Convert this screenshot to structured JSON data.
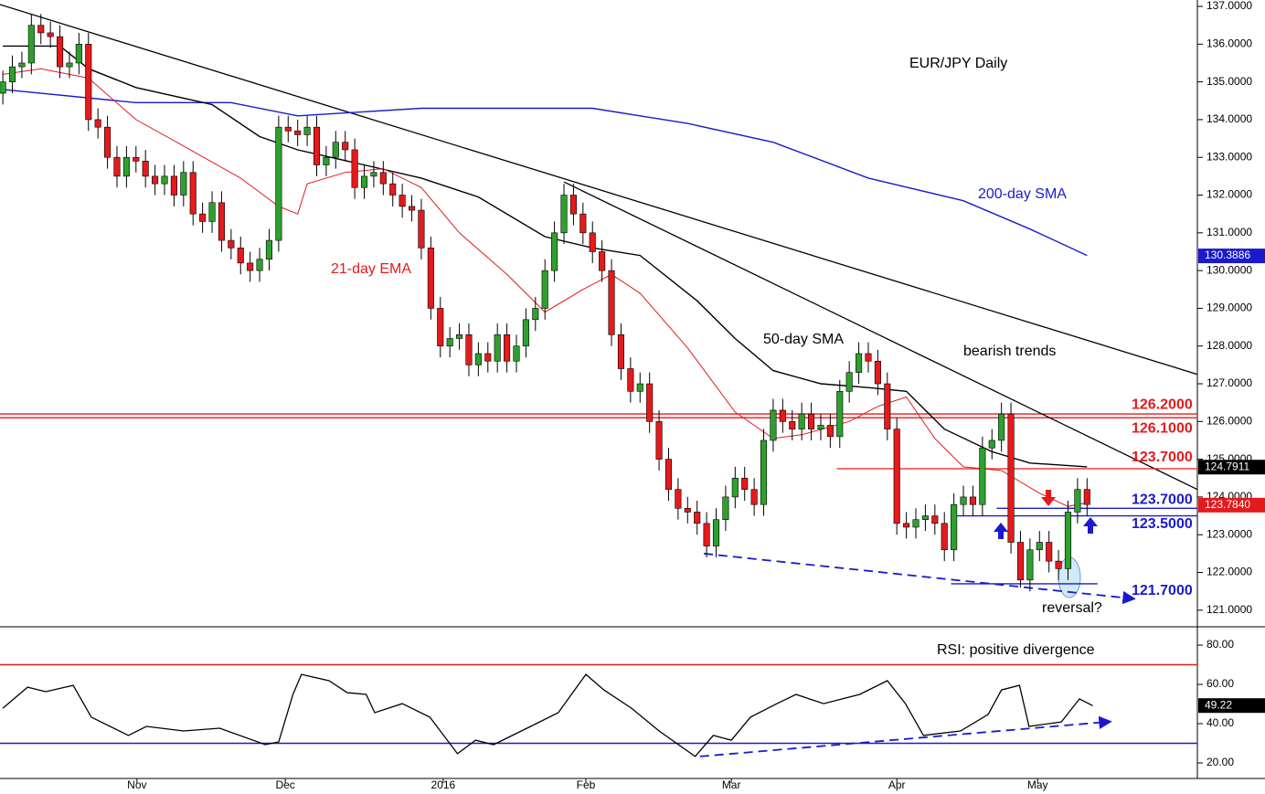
{
  "chart_data": [
    {
      "type": "candlestick",
      "title": "EUR/JPY Daily",
      "xlim": [
        -0.3,
        125.6
      ],
      "xticks": [
        {
          "value": 14.1,
          "label": "Nov"
        },
        {
          "value": 29.7,
          "label": "Dec"
        },
        {
          "value": 46.3,
          "label": "2016"
        },
        {
          "value": 61.3,
          "label": "Feb"
        },
        {
          "value": 76.6,
          "label": "Mar"
        },
        {
          "value": 94,
          "label": "Apr"
        },
        {
          "value": 108.8,
          "label": "May"
        }
      ],
      "ylim": [
        120.56,
        137.17
      ],
      "yticks": [
        {
          "value": 121,
          "label": "121.0000"
        },
        {
          "value": 122,
          "label": "122.0000"
        },
        {
          "value": 123,
          "label": "123.0000"
        },
        {
          "value": 124,
          "label": "124.0000"
        },
        {
          "value": 125,
          "label": "125.0000"
        },
        {
          "value": 126,
          "label": "126.0000"
        },
        {
          "value": 127,
          "label": "127.0000"
        },
        {
          "value": 128,
          "label": "128.0000"
        },
        {
          "value": 129,
          "label": "129.0000"
        },
        {
          "value": 130,
          "label": "130.0000"
        },
        {
          "value": 131,
          "label": "131.0000"
        },
        {
          "value": 132,
          "label": "132.0000"
        },
        {
          "value": 133,
          "label": "133.0000"
        },
        {
          "value": 134,
          "label": "134.0000"
        },
        {
          "value": 135,
          "label": "135.0000"
        },
        {
          "value": 136,
          "label": "136.0000"
        },
        {
          "value": 137,
          "label": "137.0000"
        }
      ],
      "up_color": "#2ea02e",
      "down_color": "#e41a1c",
      "open": [
        134.7,
        135.0,
        135.4,
        135.5,
        136.5,
        136.3,
        136.2,
        135.4,
        135.5,
        136.0,
        134.0,
        133.8,
        133.0,
        132.5,
        133.0,
        132.9,
        132.5,
        132.3,
        132.5,
        132.0,
        132.6,
        131.5,
        131.3,
        131.8,
        130.8,
        130.6,
        130.2,
        130.0,
        130.3,
        130.8,
        133.8,
        133.7,
        133.6,
        133.8,
        132.8,
        133.0,
        133.4,
        133.2,
        132.2,
        132.5,
        132.6,
        132.3,
        132.0,
        131.7,
        131.6,
        130.6,
        129.0,
        128.0,
        128.2,
        128.3,
        127.5,
        127.8,
        127.6,
        128.3,
        127.6,
        128.0,
        128.7,
        129.0,
        130.0,
        131.0,
        132.0,
        131.5,
        131.0,
        130.5,
        130.0,
        128.3,
        127.4,
        126.8,
        127.0,
        126.0,
        125.0,
        124.2,
        123.7,
        123.6,
        123.3,
        122.7,
        123.4,
        124.0,
        124.5,
        124.2,
        123.8,
        125.5,
        126.3,
        126.0,
        125.8,
        126.2,
        125.8,
        125.9,
        125.6,
        126.8,
        127.3,
        127.8,
        127.6,
        127.0,
        125.8,
        123.3,
        123.2,
        123.4,
        123.5,
        123.3,
        122.6,
        123.8,
        124.0,
        123.8,
        125.3,
        125.5,
        126.2,
        122.8,
        121.8,
        122.6,
        122.8,
        122.3,
        122.1,
        123.6,
        124.2
      ],
      "high": [
        135.3,
        135.7,
        135.8,
        136.8,
        136.8,
        136.6,
        136.5,
        135.8,
        136.3,
        136.3,
        134.3,
        134.1,
        133.3,
        133.3,
        133.3,
        133.2,
        132.8,
        132.8,
        132.8,
        132.9,
        132.9,
        131.8,
        132.1,
        132.1,
        131.1,
        130.9,
        130.5,
        130.6,
        131.1,
        134.1,
        134.1,
        134.0,
        134.1,
        134.1,
        133.3,
        133.7,
        133.7,
        133.5,
        132.8,
        132.9,
        132.9,
        132.6,
        132.3,
        132.0,
        131.9,
        130.9,
        129.3,
        128.5,
        128.6,
        128.6,
        128.1,
        128.1,
        128.6,
        128.6,
        128.3,
        129.0,
        129.3,
        130.3,
        131.3,
        132.3,
        132.3,
        131.8,
        131.3,
        130.8,
        130.3,
        128.6,
        127.7,
        127.3,
        127.3,
        126.3,
        125.3,
        124.5,
        124.0,
        123.9,
        123.6,
        123.7,
        124.3,
        124.8,
        124.8,
        124.5,
        125.8,
        126.6,
        126.6,
        126.3,
        126.5,
        126.5,
        126.2,
        126.2,
        127.1,
        127.6,
        128.1,
        128.1,
        127.9,
        127.3,
        126.1,
        123.6,
        123.7,
        123.8,
        123.8,
        123.6,
        124.1,
        124.3,
        124.3,
        125.6,
        125.8,
        126.5,
        126.5,
        123.1,
        122.9,
        123.1,
        123.1,
        122.6,
        123.9,
        124.5,
        124.5
      ],
      "low": [
        134.4,
        134.7,
        135.1,
        135.2,
        136.0,
        135.9,
        135.1,
        135.1,
        135.2,
        133.7,
        133.5,
        132.7,
        132.2,
        132.2,
        132.6,
        132.2,
        132.0,
        132.0,
        131.7,
        131.7,
        131.2,
        131.0,
        131.0,
        130.5,
        130.3,
        129.9,
        129.7,
        129.7,
        130.0,
        130.5,
        133.4,
        133.3,
        133.3,
        132.5,
        132.5,
        132.7,
        132.9,
        131.9,
        131.9,
        132.2,
        132.0,
        131.7,
        131.4,
        131.3,
        130.3,
        128.7,
        127.7,
        127.7,
        127.9,
        127.2,
        127.2,
        127.3,
        127.3,
        127.3,
        127.3,
        127.7,
        128.4,
        128.7,
        129.7,
        130.7,
        131.2,
        130.7,
        130.2,
        129.7,
        128.0,
        127.1,
        126.5,
        126.5,
        125.7,
        124.7,
        123.9,
        123.4,
        123.3,
        123.0,
        122.4,
        122.4,
        123.1,
        123.7,
        123.9,
        123.5,
        123.5,
        125.2,
        125.7,
        125.5,
        125.5,
        125.5,
        125.5,
        125.3,
        125.3,
        126.5,
        127.0,
        127.3,
        126.7,
        125.5,
        123.0,
        122.9,
        122.9,
        123.1,
        123.0,
        122.3,
        122.3,
        123.5,
        123.5,
        123.5,
        125.0,
        125.2,
        122.5,
        121.6,
        121.5,
        122.3,
        122.0,
        121.8,
        121.8,
        123.3,
        123.5
      ],
      "close": [
        135.0,
        135.4,
        135.5,
        136.5,
        136.3,
        136.2,
        135.4,
        135.5,
        136.0,
        134.0,
        133.8,
        133.0,
        132.5,
        133.0,
        132.9,
        132.5,
        132.3,
        132.5,
        132.0,
        132.6,
        131.5,
        131.3,
        131.8,
        130.8,
        130.6,
        130.2,
        130.0,
        130.3,
        130.8,
        133.8,
        133.7,
        133.6,
        133.8,
        132.8,
        133.0,
        133.4,
        133.2,
        132.2,
        132.5,
        132.6,
        132.3,
        132.0,
        131.7,
        131.6,
        130.6,
        129.0,
        128.0,
        128.2,
        128.3,
        127.5,
        127.8,
        127.6,
        128.3,
        127.6,
        128.0,
        128.7,
        129.0,
        130.0,
        131.0,
        132.0,
        131.5,
        131.0,
        130.5,
        130.0,
        128.3,
        127.4,
        126.8,
        127.0,
        126.0,
        125.0,
        124.2,
        123.7,
        123.6,
        123.3,
        122.7,
        123.4,
        124.0,
        124.5,
        124.2,
        123.8,
        125.5,
        126.3,
        126.0,
        125.8,
        126.2,
        125.8,
        125.9,
        125.6,
        126.8,
        127.3,
        127.8,
        127.6,
        127.0,
        125.8,
        123.3,
        123.2,
        123.4,
        123.5,
        123.3,
        122.6,
        123.8,
        124.0,
        123.8,
        125.3,
        125.5,
        126.2,
        122.8,
        121.8,
        122.6,
        122.8,
        122.3,
        122.1,
        123.6,
        124.2,
        123.8
      ],
      "overlays": [
        {
          "name": "200-day SMA",
          "color": "#1a1acc",
          "x": [
            0,
            14,
            24,
            31,
            44,
            62,
            72,
            81,
            91,
            101,
            108,
            114
          ],
          "values": [
            134.8,
            134.45,
            134.45,
            134.1,
            134.3,
            134.3,
            133.9,
            133.4,
            132.45,
            131.85,
            131.1,
            130.4
          ]
        },
        {
          "name": "50-day SMA",
          "color": "#000000",
          "x": [
            0,
            6,
            9,
            14,
            22,
            27,
            31,
            38,
            44,
            50,
            57,
            62,
            67,
            73,
            77,
            81,
            86,
            91,
            95,
            99,
            104,
            108,
            114
          ],
          "values": [
            135.95,
            135.95,
            135.35,
            134.85,
            134.4,
            133.55,
            133.2,
            132.8,
            132.45,
            131.95,
            130.9,
            130.6,
            130.4,
            129.2,
            128.2,
            127.35,
            127.0,
            126.9,
            126.8,
            125.8,
            125.2,
            124.9,
            124.8
          ]
        },
        {
          "name": "21-day EMA",
          "color": "#e41a1c",
          "x": [
            0,
            4,
            9,
            14,
            19,
            25,
            29,
            31,
            32,
            36,
            40,
            44,
            48,
            53,
            57,
            61,
            64,
            67,
            72,
            77,
            81,
            84,
            89,
            92,
            95,
            98,
            101,
            105,
            109,
            112,
            114
          ],
          "values": [
            135.2,
            135.35,
            135.1,
            134.0,
            133.3,
            132.45,
            131.7,
            131.5,
            132.3,
            132.6,
            132.7,
            132.2,
            131.0,
            129.9,
            128.9,
            129.5,
            129.9,
            129.4,
            127.95,
            126.25,
            125.55,
            125.65,
            126.0,
            126.4,
            126.65,
            125.55,
            124.8,
            124.7,
            124.1,
            123.75,
            123.85
          ]
        }
      ],
      "trendlines": [
        {
          "color": "#000000",
          "dashed": false,
          "x": [
            -0.3,
            125.6
          ],
          "values": [
            137.05,
            127.25
          ]
        },
        {
          "color": "#000000",
          "dashed": false,
          "x": [
            59,
            125.6
          ],
          "values": [
            132.35,
            124.2
          ]
        },
        {
          "color": "#e41a1c",
          "dashed": false,
          "x": [
            87.7,
            125.6
          ],
          "values": [
            124.75,
            124.75
          ]
        },
        {
          "color": "#1a1acc",
          "dashed": true,
          "x": [
            73.7,
            119
          ],
          "values": [
            122.5,
            121.3
          ]
        }
      ],
      "levels": [
        {
          "value": 126.2,
          "label": "126.2000",
          "color": "#e41a1c",
          "x": [
            -0.3,
            125.6
          ]
        },
        {
          "value": 126.1,
          "label": "126.1000",
          "color": "#e41a1c",
          "x": [
            -0.3,
            125.6
          ]
        },
        {
          "value": 123.7,
          "label": "123.7000",
          "color": "#1a1acc",
          "x": [
            104.5,
            125.6
          ]
        },
        {
          "value": 123.5,
          "label": "123.5000",
          "color": "#1a1acc",
          "x": [
            100.2,
            125.6
          ]
        },
        {
          "value": 121.7,
          "label": "121.7000",
          "color": "#1a1acc",
          "x": [
            99.7,
            115.1
          ]
        }
      ],
      "notes": [
        {
          "text": "123.7000",
          "color": "#e41a1c"
        },
        {
          "text": "bearish trends"
        },
        {
          "text": "reversal?"
        }
      ],
      "price_tags": [
        {
          "value": 130.3886,
          "label": "130.3886",
          "color": "#1a1acc"
        },
        {
          "value": 124.7911,
          "label": "124.7911",
          "color": "#000000"
        },
        {
          "value": 123.784,
          "label": "123.7840",
          "color": "#e41a1c"
        }
      ]
    },
    {
      "type": "line",
      "title": "RSI: positive divergence",
      "color": "#000000",
      "xlim": [
        -0.3,
        125.6
      ],
      "ylim": [
        12.1,
        88.4
      ],
      "yticks": [
        {
          "value": 20,
          "label": "20.00"
        },
        {
          "value": 40,
          "label": "40.00"
        },
        {
          "value": 60,
          "label": "60.00"
        },
        {
          "value": 80,
          "label": "80.00"
        }
      ],
      "x": [
        0,
        2.6,
        4.5,
        7.4,
        9.3,
        13.2,
        15.1,
        19,
        22.8,
        27.6,
        29,
        30.5,
        31.4,
        34.3,
        36.2,
        38.2,
        39.1,
        42,
        44.9,
        47.8,
        49.7,
        51.6,
        55.5,
        58.4,
        61.3,
        63.2,
        66.1,
        69,
        72.8,
        74.7,
        76.6,
        78.6,
        81.4,
        83.4,
        86.3,
        90.1,
        93,
        94.9,
        96.8,
        100.7,
        103.6,
        105,
        106.9,
        107.9,
        111.3,
        113.2,
        114.6
      ],
      "values": [
        47.9,
        58.6,
        56.3,
        59.5,
        43.3,
        34.0,
        38.6,
        36.3,
        37.7,
        29.3,
        30.7,
        54.9,
        65.1,
        61.9,
        55.8,
        54.9,
        45.6,
        50.2,
        43.3,
        24.7,
        31.6,
        29.3,
        38.6,
        45.6,
        65.1,
        57.2,
        47.9,
        36.3,
        23.3,
        34.0,
        31.6,
        43.3,
        50.2,
        54.9,
        50.2,
        54.9,
        61.9,
        50.2,
        34.0,
        36.3,
        44.7,
        57.2,
        59.5,
        38.6,
        40.9,
        52.6,
        49.2
      ],
      "levels": [
        {
          "value": 70,
          "color": "#e41a1c"
        },
        {
          "value": 30,
          "color": "#1a1acc"
        }
      ],
      "trendline": {
        "color": "#1a1acc",
        "dashed": true,
        "x": [
          73.3,
          116.5
        ],
        "values": [
          23.3,
          41.1
        ]
      },
      "last_value": {
        "value": 49.22,
        "color": "#000000"
      }
    }
  ]
}
